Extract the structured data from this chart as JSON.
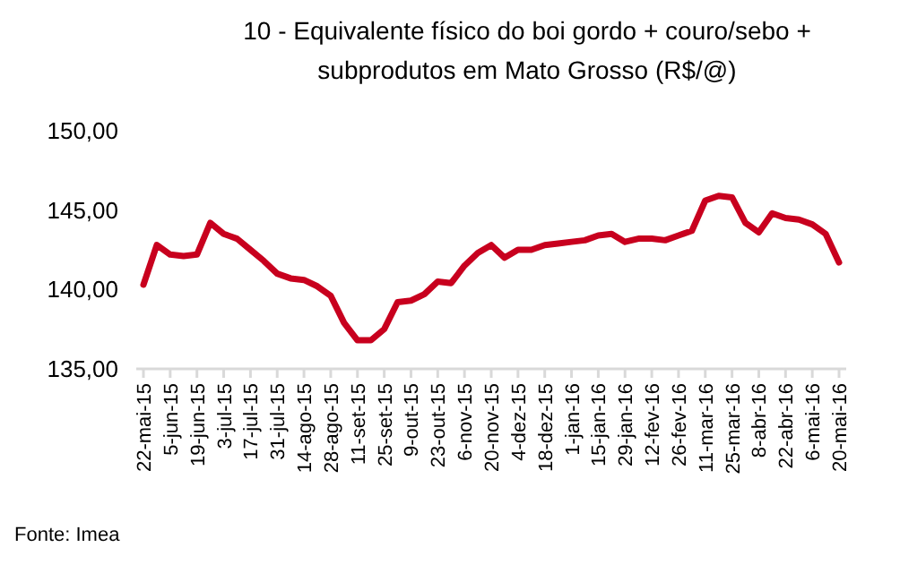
{
  "chart_data": {
    "type": "line",
    "title": "10 - Equivalente físico do boi gordo + couro/sebo + subprodutos em Mato Grosso (R$/@)",
    "categories": [
      "22-mai-15",
      null,
      "5-jun-15",
      null,
      "19-jun-15",
      null,
      "3-jul-15",
      null,
      "17-jul-15",
      null,
      "31-jul-15",
      null,
      "14-ago-15",
      null,
      "28-ago-15",
      null,
      "11-set-15",
      null,
      "25-set-15",
      null,
      "9-out-15",
      null,
      "23-out-15",
      null,
      "6-nov-15",
      null,
      "20-nov-15",
      null,
      "4-dez-15",
      null,
      "18-dez-15",
      null,
      "1-jan-16",
      null,
      "15-jan-16",
      null,
      "29-jan-16",
      null,
      "12-fev-16",
      null,
      "26-fev-16",
      null,
      "11-mar-16",
      null,
      "25-mar-16",
      null,
      "8-abr-16",
      null,
      "22-abr-16",
      null,
      "6-mai-16",
      null,
      "20-mai-16"
    ],
    "series": [
      {
        "color": "#c8001e",
        "values": [
          140.3,
          142.8,
          142.2,
          142.1,
          142.2,
          144.2,
          143.5,
          143.2,
          142.5,
          141.8,
          141.0,
          140.7,
          140.6,
          140.2,
          139.6,
          137.9,
          136.8,
          136.8,
          137.5,
          139.2,
          139.3,
          139.7,
          140.5,
          140.4,
          141.5,
          142.3,
          142.8,
          142.0,
          142.5,
          142.5,
          142.8,
          142.9,
          143.0,
          143.1,
          143.4,
          143.5,
          143.0,
          143.2,
          143.2,
          143.1,
          143.4,
          143.7,
          145.6,
          145.9,
          145.8,
          144.2,
          143.6,
          144.8,
          144.5,
          144.4,
          144.1,
          143.5,
          141.7
        ]
      }
    ],
    "ylim": [
      135,
      150
    ],
    "yticks": [
      {
        "value": 135,
        "label": "135,00"
      },
      {
        "value": 140,
        "label": "140,00"
      },
      {
        "value": 145,
        "label": "145,00"
      },
      {
        "value": 150,
        "label": "150,00"
      }
    ],
    "grid": false,
    "marker": "none",
    "line_style": "solid",
    "annotations": [
      "Fonte: Imea"
    ]
  }
}
